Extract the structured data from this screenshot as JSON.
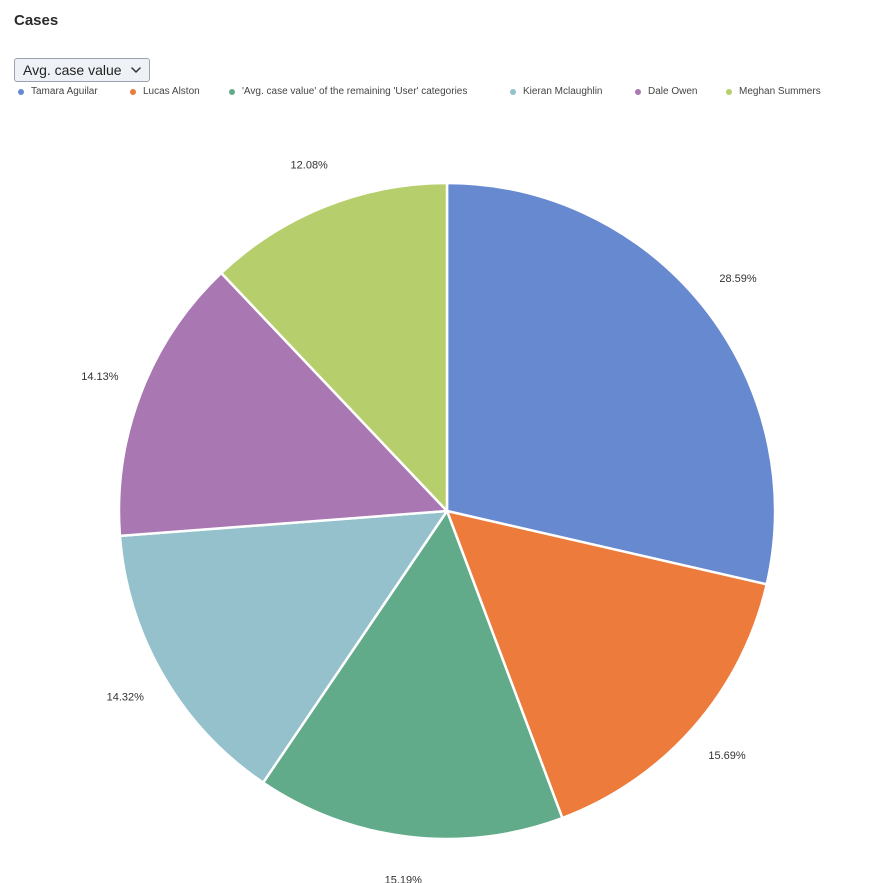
{
  "panel": {
    "title": "Cases"
  },
  "measure_select": {
    "selected": "Avg. case value",
    "icon": "chevron-down-icon"
  },
  "chart_data": {
    "type": "pie",
    "title": "",
    "series": [
      {
        "name": "Tamara Aguilar",
        "value": 28.59,
        "label": "28.59%",
        "color": "#6789d0"
      },
      {
        "name": "Lucas Alston",
        "value": 15.69,
        "label": "15.69%",
        "color": "#ed7b3b"
      },
      {
        "name": "'Avg. case value' of the remaining 'User' categories",
        "value": 15.19,
        "label": "15.19%",
        "color": "#61ab8b"
      },
      {
        "name": "Kieran Mclaughlin",
        "value": 14.32,
        "label": "14.32%",
        "color": "#94c1cc"
      },
      {
        "name": "Dale Owen",
        "value": 14.13,
        "label": "14.13%",
        "color": "#a977b1"
      },
      {
        "name": "Meghan Summers",
        "value": 12.08,
        "label": "12.08%",
        "color": "#b7ce6d"
      }
    ],
    "legend_position": "top-left"
  }
}
